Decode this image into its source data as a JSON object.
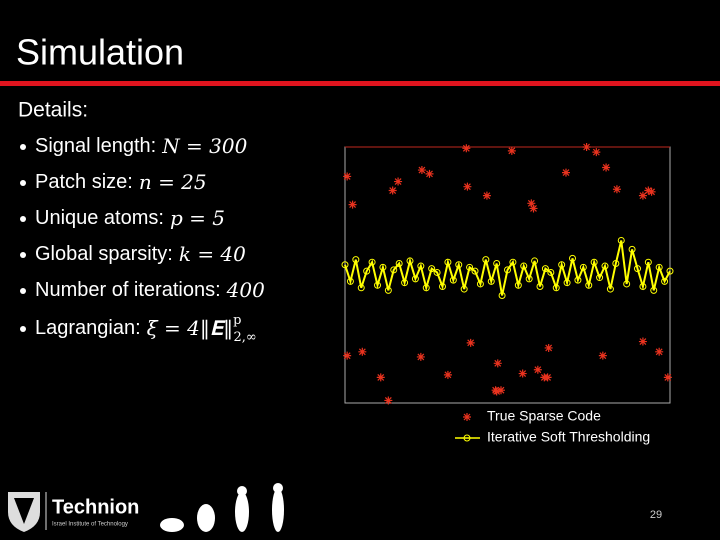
{
  "slide": {
    "title": "Simulation",
    "details_heading": "Details:",
    "bullets": [
      {
        "label": "Signal length:",
        "math": "N = 300"
      },
      {
        "label": "Patch size:",
        "math": "n = 25"
      },
      {
        "label": "Unique atoms:",
        "math": "p = 5"
      },
      {
        "label": "Global sparsity:",
        "math": "k = 40"
      },
      {
        "label": "Number of iterations:",
        "math": "400"
      },
      {
        "label": "Lagrangian:",
        "math": "ξ = 4‖𝐄‖",
        "sup": "p",
        "sub": "2,∞"
      }
    ],
    "logo": {
      "name": "Technion",
      "subtitle": "Israel Institute of Technology"
    },
    "page_number": "29"
  },
  "chart_data": {
    "type": "scatter",
    "xlim": [
      0,
      300
    ],
    "ylim": [
      -1,
      1
    ],
    "series": [
      {
        "name": "True Sparse Code",
        "color": "#e8321e",
        "marker": "star",
        "x": [
          2,
          7,
          44,
          49,
          71,
          78,
          112,
          113,
          131,
          154,
          172,
          174,
          204,
          223,
          232,
          241,
          251,
          275,
          280,
          283,
          2,
          16,
          33,
          40,
          70,
          95,
          116,
          141,
          139,
          144,
          164,
          178,
          184,
          188,
          238,
          275,
          290,
          298,
          187,
          140
        ],
        "values": [
          0.77,
          0.55,
          0.66,
          0.73,
          0.82,
          0.79,
          0.99,
          0.69,
          0.62,
          0.97,
          0.56,
          0.52,
          0.8,
          1.0,
          0.96,
          0.84,
          0.67,
          0.62,
          0.66,
          0.65,
          -0.63,
          -0.6,
          -0.8,
          -0.98,
          -0.64,
          -0.78,
          -0.53,
          -0.69,
          -0.9,
          -0.9,
          -0.77,
          -0.74,
          -0.8,
          -0.57,
          -0.63,
          -0.52,
          -0.6,
          -0.8,
          -0.8,
          -0.91
        ]
      },
      {
        "name": "Iterative Soft Thresholding",
        "color": "#ffff00",
        "marker": "circle-line",
        "x": [
          0,
          5,
          10,
          15,
          20,
          25,
          30,
          35,
          40,
          45,
          50,
          55,
          60,
          65,
          70,
          75,
          80,
          85,
          90,
          95,
          100,
          105,
          110,
          115,
          120,
          125,
          130,
          135,
          140,
          145,
          150,
          155,
          160,
          165,
          170,
          175,
          180,
          185,
          190,
          195,
          200,
          205,
          210,
          215,
          220,
          225,
          230,
          235,
          240,
          245,
          250,
          255,
          260,
          265,
          270,
          275,
          280,
          285,
          290,
          295,
          300
        ],
        "values": [
          0.08,
          -0.05,
          0.12,
          -0.1,
          0.03,
          0.1,
          -0.08,
          0.06,
          -0.12,
          0.04,
          0.09,
          -0.06,
          0.11,
          -0.03,
          0.07,
          -0.1,
          0.05,
          0.02,
          -0.09,
          0.1,
          -0.04,
          0.08,
          -0.11,
          0.06,
          0.03,
          -0.07,
          0.12,
          -0.05,
          0.09,
          -0.16,
          0.04,
          0.1,
          -0.08,
          0.07,
          -0.03,
          0.11,
          -0.09,
          0.05,
          0.02,
          -0.1,
          0.08,
          -0.06,
          0.13,
          -0.04,
          0.06,
          -0.08,
          0.1,
          -0.02,
          0.07,
          -0.11,
          0.09,
          0.27,
          -0.07,
          0.2,
          0.05,
          -0.09,
          0.1,
          -0.12,
          0.06,
          -0.05,
          0.03
        ]
      }
    ]
  }
}
